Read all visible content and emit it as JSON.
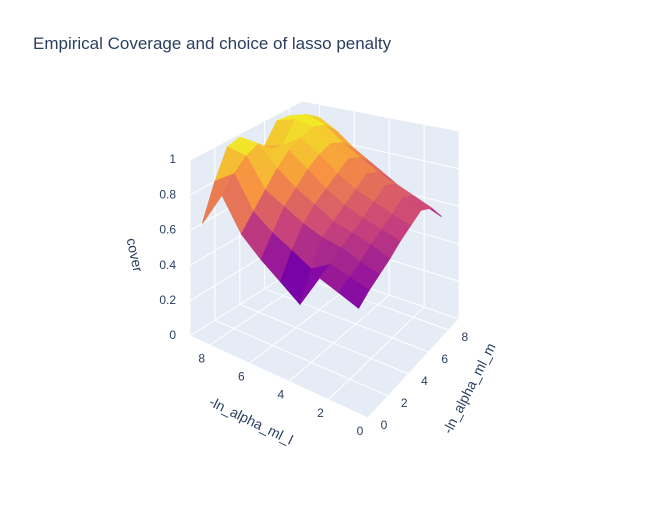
{
  "chart_data": {
    "type": "surface",
    "title": "Empirical Coverage and choice of lasso penalty",
    "xlabel": "-ln_alpha_ml_l",
    "ylabel": "-ln_alpha_ml_m",
    "zlabel": "cover",
    "x_ticks": [
      "0",
      "2",
      "4",
      "6",
      "8"
    ],
    "y_ticks": [
      "0",
      "2",
      "4",
      "6",
      "8"
    ],
    "z_ticks": [
      "0",
      "0.2",
      "0.4",
      "0.6",
      "0.8",
      "1"
    ],
    "xlim": [
      0,
      9
    ],
    "ylim": [
      0,
      9
    ],
    "zlim": [
      0,
      1
    ],
    "colorscale": [
      "#0d0887",
      "#7e03a8",
      "#cc4778",
      "#f89540",
      "#f0f921"
    ],
    "x": [
      1,
      2,
      3,
      4,
      5,
      6,
      7,
      8,
      9
    ],
    "y": [
      1,
      2,
      3,
      4,
      5,
      6,
      7,
      8,
      9
    ],
    "z": [
      [
        0.46,
        0.5,
        0.53,
        0.56,
        0.6,
        0.63,
        0.66,
        0.62,
        0.52
      ],
      [
        0.5,
        0.53,
        0.56,
        0.6,
        0.63,
        0.66,
        0.7,
        0.66,
        0.56
      ],
      [
        0.54,
        0.56,
        0.6,
        0.63,
        0.66,
        0.7,
        0.74,
        0.7,
        0.6
      ],
      [
        0.36,
        0.5,
        0.62,
        0.66,
        0.7,
        0.74,
        0.78,
        0.74,
        0.66
      ],
      [
        0.44,
        0.56,
        0.66,
        0.72,
        0.76,
        0.8,
        0.84,
        0.8,
        0.72
      ],
      [
        0.52,
        0.62,
        0.72,
        0.78,
        0.84,
        0.88,
        0.9,
        0.86,
        0.78
      ],
      [
        0.62,
        0.7,
        0.78,
        0.86,
        0.92,
        0.95,
        0.97,
        0.94,
        0.86
      ],
      [
        0.8,
        0.88,
        0.94,
        0.97,
        0.9,
        0.88,
        0.99,
        0.98,
        0.92
      ],
      [
        0.6,
        0.8,
        0.96,
        0.98,
        0.86,
        0.85,
        0.96,
        0.95,
        0.9
      ]
    ]
  }
}
